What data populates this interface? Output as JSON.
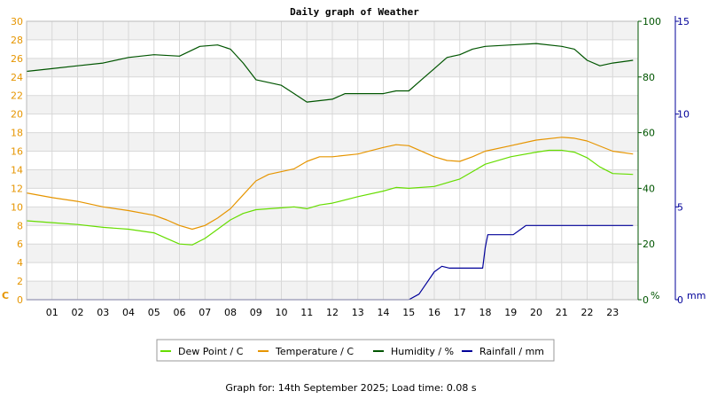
{
  "chart_data": {
    "type": "line",
    "title": "Daily graph of Weather",
    "footer": "Graph for: 14th September 2025; Load time: 0.08 s",
    "x_unit": "hour",
    "x_range": [
      0,
      24
    ],
    "x_ticks": [
      "01",
      "02",
      "03",
      "04",
      "05",
      "06",
      "07",
      "08",
      "09",
      "10",
      "11",
      "12",
      "13",
      "14",
      "15",
      "16",
      "17",
      "18",
      "19",
      "20",
      "21",
      "22",
      "23"
    ],
    "axes": {
      "left": {
        "unit_label": "C",
        "range": [
          0,
          30
        ],
        "ticks": [
          0,
          2,
          4,
          6,
          8,
          10,
          12,
          14,
          16,
          18,
          20,
          22,
          24,
          26,
          28,
          30
        ],
        "color": "#e69500"
      },
      "right1": {
        "unit_label": "%",
        "range": [
          0,
          100
        ],
        "ticks": [
          0,
          20,
          40,
          60,
          80,
          100
        ],
        "color": "#005500"
      },
      "right2": {
        "unit_label": "mm",
        "range": [
          0,
          15
        ],
        "ticks": [
          0,
          5,
          10,
          15
        ],
        "color": "#000099"
      }
    },
    "grid": true,
    "legend_position": "bottom",
    "series": [
      {
        "name": "Dew Point / C",
        "axis": "left",
        "color": "#66dd00",
        "points": [
          [
            0,
            8.5
          ],
          [
            1,
            8.3
          ],
          [
            2,
            8.1
          ],
          [
            3,
            7.8
          ],
          [
            4,
            7.6
          ],
          [
            5,
            7.2
          ],
          [
            5.5,
            6.6
          ],
          [
            6,
            6
          ],
          [
            6.5,
            5.9
          ],
          [
            7,
            6.6
          ],
          [
            7.5,
            7.6
          ],
          [
            8,
            8.6
          ],
          [
            8.5,
            9.3
          ],
          [
            9,
            9.7
          ],
          [
            10,
            9.9
          ],
          [
            10.5,
            10
          ],
          [
            11,
            9.8
          ],
          [
            11.5,
            10.2
          ],
          [
            12,
            10.4
          ],
          [
            13,
            11.1
          ],
          [
            14,
            11.7
          ],
          [
            14.5,
            12.1
          ],
          [
            15,
            12
          ],
          [
            16,
            12.2
          ],
          [
            17,
            13
          ],
          [
            17.5,
            13.8
          ],
          [
            18,
            14.6
          ],
          [
            19,
            15.4
          ],
          [
            20,
            15.9
          ],
          [
            20.5,
            16.1
          ],
          [
            21,
            16.1
          ],
          [
            21.5,
            15.9
          ],
          [
            22,
            15.3
          ],
          [
            22.5,
            14.3
          ],
          [
            23,
            13.6
          ],
          [
            23.8,
            13.5
          ]
        ]
      },
      {
        "name": "Temperature / C",
        "axis": "left",
        "color": "#e69500",
        "points": [
          [
            0,
            11.5
          ],
          [
            1,
            11
          ],
          [
            2,
            10.6
          ],
          [
            3,
            10
          ],
          [
            4,
            9.6
          ],
          [
            5,
            9.1
          ],
          [
            5.5,
            8.6
          ],
          [
            6,
            8
          ],
          [
            6.5,
            7.6
          ],
          [
            7,
            8
          ],
          [
            7.5,
            8.8
          ],
          [
            8,
            9.8
          ],
          [
            8.5,
            11.3
          ],
          [
            9,
            12.8
          ],
          [
            9.5,
            13.5
          ],
          [
            10,
            13.8
          ],
          [
            10.5,
            14.1
          ],
          [
            11,
            14.9
          ],
          [
            11.5,
            15.4
          ],
          [
            12,
            15.4
          ],
          [
            13,
            15.7
          ],
          [
            14,
            16.4
          ],
          [
            14.5,
            16.7
          ],
          [
            15,
            16.6
          ],
          [
            16,
            15.4
          ],
          [
            16.5,
            15
          ],
          [
            17,
            14.9
          ],
          [
            17.5,
            15.4
          ],
          [
            18,
            16
          ],
          [
            19,
            16.6
          ],
          [
            20,
            17.2
          ],
          [
            21,
            17.5
          ],
          [
            21.5,
            17.4
          ],
          [
            22,
            17.1
          ],
          [
            23,
            16
          ],
          [
            23.8,
            15.7
          ]
        ]
      },
      {
        "name": "Humidity / %",
        "axis": "right1",
        "color": "#005500",
        "points": [
          [
            0,
            82
          ],
          [
            1,
            83
          ],
          [
            2,
            84
          ],
          [
            3,
            85
          ],
          [
            4,
            87
          ],
          [
            5,
            88
          ],
          [
            6,
            87.5
          ],
          [
            6.8,
            91
          ],
          [
            7.5,
            91.5
          ],
          [
            8,
            90
          ],
          [
            8.5,
            85
          ],
          [
            9,
            79
          ],
          [
            10,
            77
          ],
          [
            10.5,
            74
          ],
          [
            11,
            71
          ],
          [
            12,
            72
          ],
          [
            12.5,
            74
          ],
          [
            14,
            74
          ],
          [
            14.5,
            75
          ],
          [
            15,
            75
          ],
          [
            15.5,
            79
          ],
          [
            16,
            83
          ],
          [
            16.5,
            87
          ],
          [
            17,
            88
          ],
          [
            17.5,
            90
          ],
          [
            18,
            91
          ],
          [
            19,
            91.5
          ],
          [
            20,
            92
          ],
          [
            21,
            91
          ],
          [
            21.5,
            90
          ],
          [
            22,
            86
          ],
          [
            22.5,
            84
          ],
          [
            23,
            85
          ],
          [
            23.8,
            86
          ]
        ]
      },
      {
        "name": "Rainfall / mm",
        "axis": "right2",
        "color": "#000099",
        "points": [
          [
            0,
            0
          ],
          [
            15,
            0
          ],
          [
            15.4,
            0.3
          ],
          [
            15.7,
            0.9
          ],
          [
            16,
            1.5
          ],
          [
            16.3,
            1.8
          ],
          [
            16.6,
            1.7
          ],
          [
            17.5,
            1.7
          ],
          [
            17.9,
            1.7
          ],
          [
            18,
            2.8
          ],
          [
            18.1,
            3.5
          ],
          [
            18.5,
            3.5
          ],
          [
            19.1,
            3.5
          ],
          [
            19.4,
            3.8
          ],
          [
            19.6,
            4
          ],
          [
            21,
            4
          ],
          [
            23.8,
            4
          ]
        ]
      }
    ]
  }
}
